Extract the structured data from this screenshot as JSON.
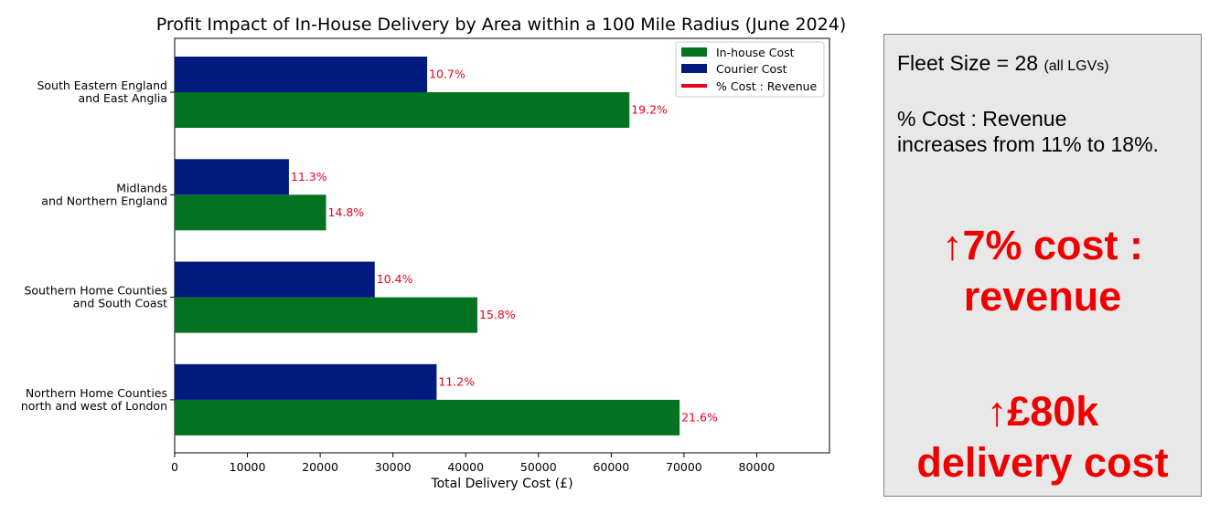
{
  "chart_data": {
    "type": "bar",
    "orientation": "horizontal",
    "title": "Profit Impact of In-House Delivery by Area within a 100 Mile Radius (June 2024)",
    "xlabel": "Total Delivery Cost (£)",
    "ylabel": "",
    "xlim": [
      0,
      90000
    ],
    "xticks": [
      0,
      10000,
      20000,
      30000,
      40000,
      50000,
      60000,
      70000,
      80000
    ],
    "grid": false,
    "legend_position": "top-right",
    "categories": [
      [
        "South Eastern England",
        "and East Anglia"
      ],
      [
        "Midlands",
        "and Northern England"
      ],
      [
        "Southern Home Counties",
        "and South Coast"
      ],
      [
        "Northern Home Counties",
        "north and west of London"
      ]
    ],
    "series": [
      {
        "name": "In-house Cost",
        "color": "#037321",
        "values": [
          62500,
          20800,
          41600,
          69400
        ],
        "labels": [
          "19.2%",
          "14.8%",
          "15.8%",
          "21.6%"
        ]
      },
      {
        "name": "Courier Cost",
        "color": "#001a80",
        "values": [
          34700,
          15700,
          27500,
          36000
        ],
        "labels": [
          "10.7%",
          "11.3%",
          "10.4%",
          "11.2%"
        ]
      }
    ],
    "legend_extra": {
      "name": "% Cost : Revenue",
      "color": "#e8001c"
    },
    "label_color": "#e8001c"
  },
  "info_panel": {
    "fleet_main": "Fleet Size = 28",
    "fleet_note": "(all LGVs)",
    "ratio_text": "% Cost : Revenue increases from 11% to 18%.",
    "headline_1_line1": "↑7% cost :",
    "headline_1_line2": "revenue",
    "headline_2_line1": "↑£80k",
    "headline_2_line2": "delivery cost",
    "headline_color": "#ee0000"
  }
}
